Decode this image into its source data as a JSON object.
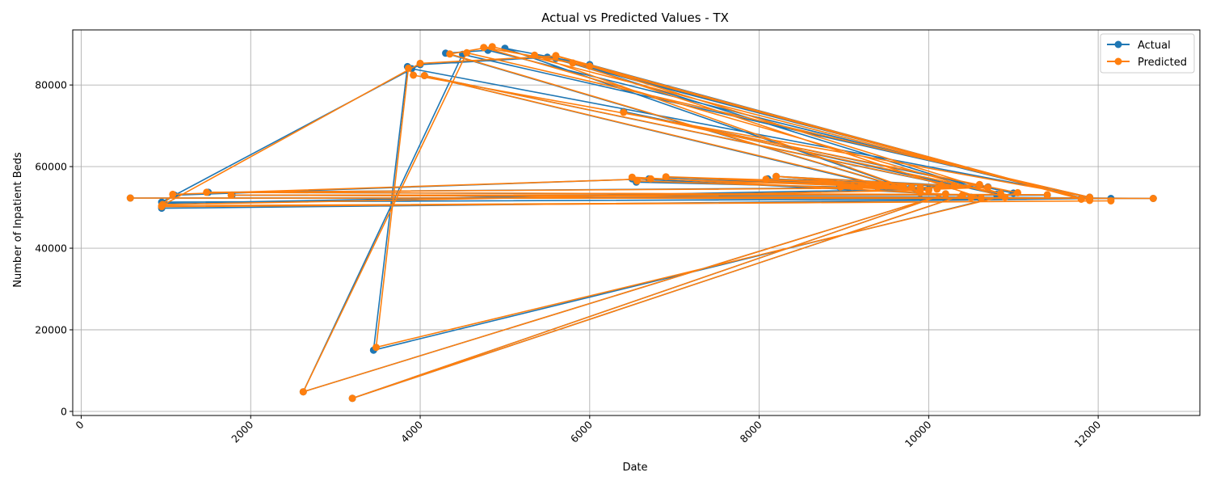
{
  "chart_data": {
    "type": "line",
    "title": "Actual vs Predicted Values - TX",
    "xlabel": "Date",
    "ylabel": "Number of Inpatient Beds",
    "xlim": [
      -100,
      13200
    ],
    "ylim": [
      -1000,
      93500
    ],
    "x_ticks": [
      0,
      2000,
      4000,
      6000,
      8000,
      10000,
      12000
    ],
    "x_tick_labels": [
      "0",
      "2000",
      "4000",
      "6000",
      "8000",
      "10000",
      "12000"
    ],
    "y_ticks": [
      0,
      20000,
      40000,
      60000,
      80000
    ],
    "y_tick_labels": [
      "0",
      "20000",
      "40000",
      "60000",
      "80000"
    ],
    "grid": true,
    "legend_position": "top-right",
    "colors": {
      "Actual": "#1f77b4",
      "Predicted": "#ff7f0e"
    },
    "series": [
      {
        "name": "Actual",
        "x": [
          950,
          12150,
          950,
          4000,
          5500,
          11900,
          4800,
          4300,
          9900,
          5000,
          6000,
          11800,
          5600,
          10800,
          6400,
          11000,
          3450,
          3850,
          3900,
          11900,
          4500,
          2620,
          10200,
          3200,
          10400,
          6500,
          6550,
          10000,
          960,
          1100,
          6700,
          9800,
          6900,
          10300,
          4050,
          9500,
          8100,
          10150,
          8200,
          9700,
          8950,
          9200,
          9100,
          9400,
          9900,
          10600,
          10100,
          10700,
          1500,
          11400,
          1780,
          10500,
          12650,
          580,
          10600
        ],
        "y": [
          49800,
          52200,
          51300,
          85000,
          86800,
          51800,
          88500,
          87800,
          53500,
          89000,
          85000,
          52200,
          86500,
          53200,
          73500,
          53500,
          15000,
          84500,
          84000,
          52500,
          87500,
          4800,
          53300,
          3200,
          53000,
          57000,
          56200,
          54500,
          51000,
          53000,
          57000,
          55000,
          57300,
          55200,
          82300,
          55000,
          57000,
          55500,
          57600,
          55200,
          55000,
          55300,
          55200,
          55100,
          54900,
          55500,
          54600,
          55000,
          53700,
          53000,
          53000,
          52500,
          52200,
          52300,
          52400
        ]
      },
      {
        "name": "Predicted",
        "x": [
          950,
          12150,
          950,
          4000,
          5600,
          11900,
          4850,
          4350,
          9900,
          5350,
          6000,
          11800,
          5600,
          10850,
          6400,
          11050,
          3480,
          3860,
          3920,
          11900,
          4550,
          2620,
          10200,
          3200,
          10400,
          6500,
          6560,
          10000,
          960,
          1080,
          6720,
          9800,
          6900,
          10300,
          4050,
          9500,
          8080,
          10150,
          8200,
          9700,
          8960,
          9200,
          9100,
          9400,
          9900,
          10600,
          10100,
          10700,
          1480,
          11400,
          1770,
          10500,
          12650,
          580,
          10620,
          5800,
          4750,
          10900
        ],
        "y": [
          50200,
          51600,
          50400,
          85300,
          87100,
          51700,
          89400,
          87600,
          53600,
          87300,
          84600,
          52000,
          87200,
          53400,
          73300,
          53600,
          15700,
          84100,
          82400,
          52500,
          87900,
          4800,
          53300,
          3200,
          53000,
          57400,
          56500,
          54200,
          50700,
          53200,
          57000,
          54800,
          57500,
          55300,
          82300,
          55200,
          56900,
          55400,
          57600,
          55100,
          55000,
          55300,
          55100,
          55000,
          54800,
          55600,
          54500,
          54900,
          53700,
          53100,
          53000,
          52400,
          52200,
          52300,
          52300,
          85400,
          89200,
          52500
        ]
      }
    ]
  }
}
